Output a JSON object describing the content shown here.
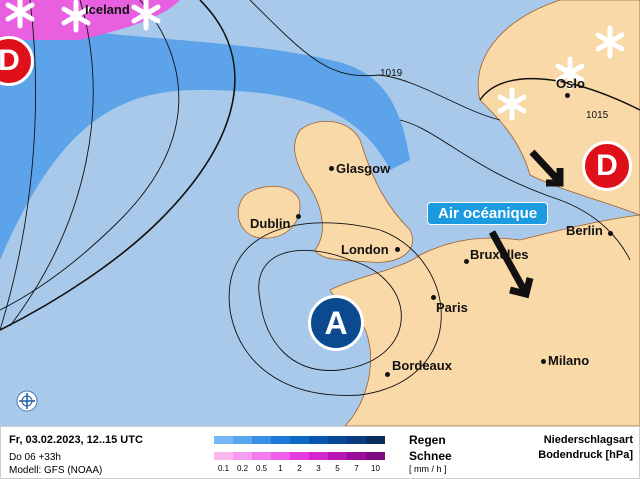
{
  "map": {
    "cities": [
      "Glasgow",
      "Dublin",
      "London",
      "Bruxelles",
      "Paris",
      "Berlin",
      "Bordeaux",
      "Milano",
      "Oslo",
      "Iceland"
    ],
    "isobar_labels": [
      "1019",
      "1015"
    ],
    "pressure_systems": {
      "low": "D",
      "high": "A"
    },
    "air_mass_label": "Air océanique",
    "icons": [
      "snow-icon",
      "wind-arrow-icon",
      "compass-icon"
    ]
  },
  "footer": {
    "datetime": "Fr, 03.02.2023, 12..15 UTC",
    "forecast": "Do 06 +33h",
    "model": "Modell: GFS (NOAA)",
    "rain_label": "Regen",
    "snow_label": "Schnee",
    "unit": "[ mm / h ]",
    "scale": [
      "0.1",
      "0.2",
      "0.5",
      "1",
      "2",
      "3",
      "5",
      "7",
      "10"
    ],
    "title1": "Niederschlagsart",
    "title2": "Bodendruck [hPa]",
    "rain_colors": [
      "#74b9f5",
      "#58a6ee",
      "#3a90e6",
      "#1c7ad8",
      "#0e68c6",
      "#0a58ae",
      "#094a98",
      "#083c80",
      "#0a2e5c"
    ],
    "snow_colors": [
      "#f9b8f0",
      "#f79cf0",
      "#f47cef",
      "#f05cec",
      "#e83ae4",
      "#d424d0",
      "#b814b6",
      "#9c0c9a",
      "#800a80"
    ]
  }
}
